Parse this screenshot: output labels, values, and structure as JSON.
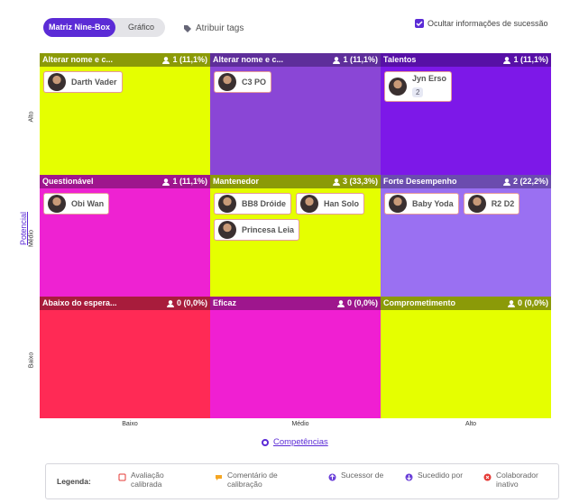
{
  "toolbar": {
    "tabs": [
      "Matriz Nine-Box",
      "Gráfico"
    ],
    "tags_button": "Atribuir tags",
    "hide_succession": "Ocultar informações de sucessão"
  },
  "axes": {
    "y_title": "Potencial",
    "y_levels": [
      "Alto",
      "Médio",
      "Baixo"
    ],
    "x_title": "Competências",
    "x_levels": [
      "Baixo",
      "Médio",
      "Alto"
    ]
  },
  "boxes": [
    {
      "title": "Alterar nome e c...",
      "count": "1 (11,1%)",
      "people": [
        {
          "name": "Darth Vader"
        }
      ]
    },
    {
      "title": "Alterar nome e c...",
      "count": "1 (11,1%)",
      "people": [
        {
          "name": "C3 PO"
        }
      ]
    },
    {
      "title": "Talentos",
      "count": "1 (11,1%)",
      "people": [
        {
          "name": "Jyn Erso",
          "tags": "2"
        }
      ]
    },
    {
      "title": "Questionável",
      "count": "1 (11,1%)",
      "people": [
        {
          "name": "Obi Wan"
        }
      ]
    },
    {
      "title": "Mantenedor",
      "count": "3 (33,3%)",
      "people": [
        {
          "name": "BB8 Dróide"
        },
        {
          "name": "Han Solo"
        },
        {
          "name": "Princesa Leia"
        }
      ]
    },
    {
      "title": "Forte Desempenho",
      "count": "2 (22,2%)",
      "people": [
        {
          "name": "Baby Yoda"
        },
        {
          "name": "R2 D2"
        }
      ]
    },
    {
      "title": "Abaixo do espera...",
      "count": "0 (0,0%)",
      "people": []
    },
    {
      "title": "Eficaz",
      "count": "0 (0,0%)",
      "people": []
    },
    {
      "title": "Comprometimento",
      "count": "0 (0,0%)",
      "people": []
    }
  ],
  "legend": {
    "title": "Legenda:",
    "items": [
      "Avaliação calibrada",
      "Comentário de calibração",
      "Sucessor de",
      "Sucedido por",
      "Colaborador inativo"
    ]
  }
}
